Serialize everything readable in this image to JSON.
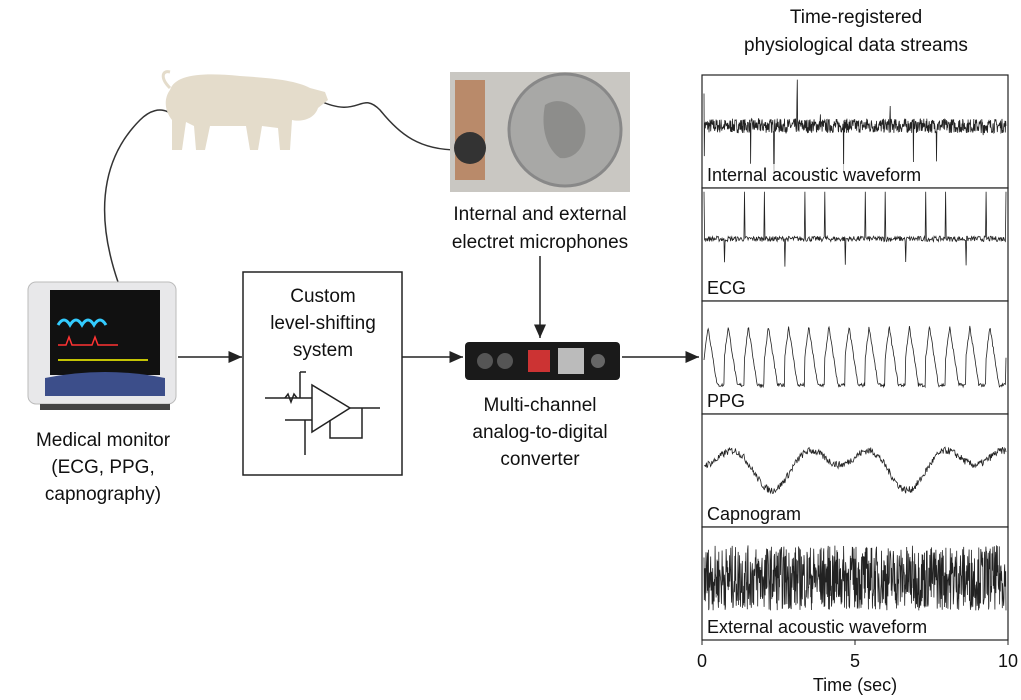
{
  "monitor": {
    "lines": [
      "Medical monitor",
      "(ECG, PPG,",
      "capnography)"
    ]
  },
  "level_shifter": {
    "lines": [
      "Custom",
      "level-shifting",
      "system"
    ]
  },
  "microphones": {
    "lines": [
      "Internal and external",
      "electret microphones"
    ]
  },
  "converter": {
    "lines": [
      "Multi-channel",
      "analog-to-digital",
      "converter"
    ]
  },
  "streams": {
    "title_lines": [
      "Time-registered",
      "physiological data streams"
    ],
    "panels": [
      "Internal acoustic waveform",
      "ECG",
      "PPG",
      "Capnogram",
      "External acoustic waveform"
    ],
    "x_axis": {
      "label": "Time (sec)",
      "lim": [
        0,
        10
      ],
      "ticks": [
        0,
        5,
        10
      ]
    }
  }
}
